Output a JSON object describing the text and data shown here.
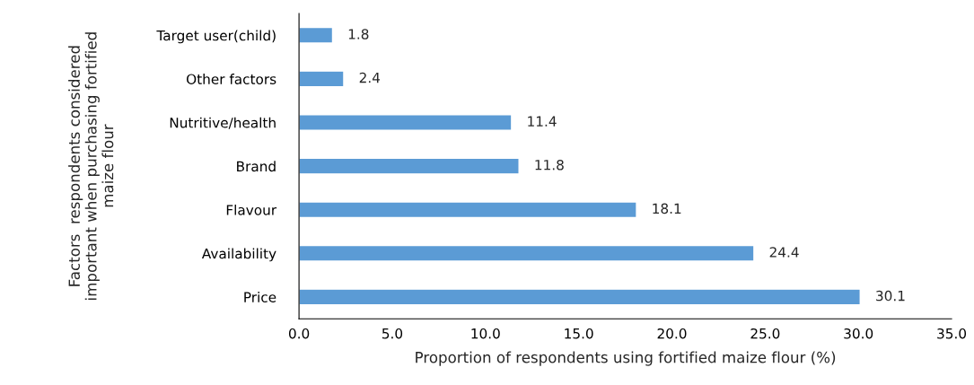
{
  "chart_data": {
    "type": "bar",
    "orientation": "horizontal",
    "categories": [
      "Target user(child)",
      "Other factors",
      "Nutritive/health",
      "Brand",
      "Flavour",
      "Availability",
      "Price"
    ],
    "values": [
      1.8,
      2.4,
      11.4,
      11.8,
      18.1,
      24.4,
      30.1
    ],
    "color": "#5b9bd5",
    "data_labels": true,
    "xlabel": "Proportion of respondents using fortified maize flour (%)",
    "ylabel": "Factors  respondents considered\nimportant when purchasing fortified\nmaize flour",
    "xlim": [
      0,
      35
    ],
    "xticks": [
      {
        "value": 0,
        "label": "0.0"
      },
      {
        "value": 5,
        "label": "5.0"
      },
      {
        "value": 10,
        "label": "10.0"
      },
      {
        "value": 15,
        "label": "15.0"
      },
      {
        "value": 20,
        "label": "20.0"
      },
      {
        "value": 25,
        "label": "25.0"
      },
      {
        "value": 30,
        "label": "30.0"
      },
      {
        "value": 35,
        "label": "35.0"
      }
    ],
    "grid": false,
    "legend": false
  }
}
